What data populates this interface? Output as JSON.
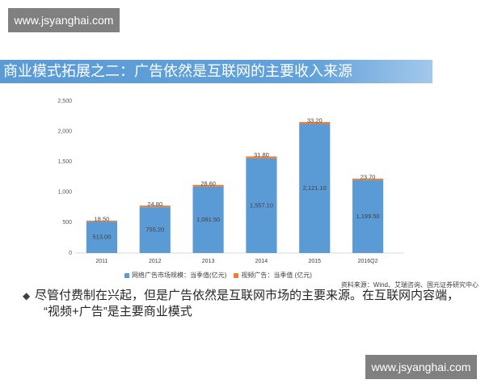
{
  "watermarks": {
    "top_left": "www.jsyanghai.com",
    "bottom_right": "www.jsyanghai.com"
  },
  "slide": {
    "title": "商业模式拓展之二：广告依然是互联网的主要收入来源",
    "source": "资料来源：Wind、艾瑞咨询、国元证券研究中心",
    "bullet": {
      "marker": "◆",
      "lines": [
        "尽管付费制在兴起，但是广告依然是互联网市场的主要来源。在互联网内容端，",
        "“视频+广告”是主要商业模式"
      ]
    }
  },
  "colors": {
    "title_bar": "#5b9bd5",
    "watermark_bg": "#6e6e6e"
  },
  "chart_data": {
    "type": "bar",
    "stacked": true,
    "categories": [
      "2011",
      "2012",
      "2013",
      "2014",
      "2015",
      "2016Q2"
    ],
    "ylim": [
      0,
      2500
    ],
    "yticks": [
      0,
      500,
      1000,
      1500,
      2000,
      2500
    ],
    "ytick_labels": [
      "0",
      "500",
      "1,000",
      "1,500",
      "2,000",
      "2,500"
    ],
    "grid": false,
    "legend": "bottom-center",
    "series": [
      {
        "name": "网络广告市场规模：当季值(亿元)",
        "color": "#5b9bd5",
        "values": [
          513.0,
          755.2,
          1091.5,
          1557.1,
          2121.1,
          1199.5
        ],
        "data_labels": [
          "513.00",
          "755.20",
          "1,091.50",
          "1,557.10",
          "2,121.10",
          "1,199.50"
        ]
      },
      {
        "name": "视频广告：当季值 (亿元)",
        "color": "#ed7d31",
        "values": [
          18.5,
          24.8,
          28.6,
          31.8,
          33.2,
          23.7
        ],
        "data_labels": [
          "18.50",
          "24.80",
          "28.60",
          "31.80",
          "33.20",
          "23.70"
        ]
      }
    ]
  }
}
